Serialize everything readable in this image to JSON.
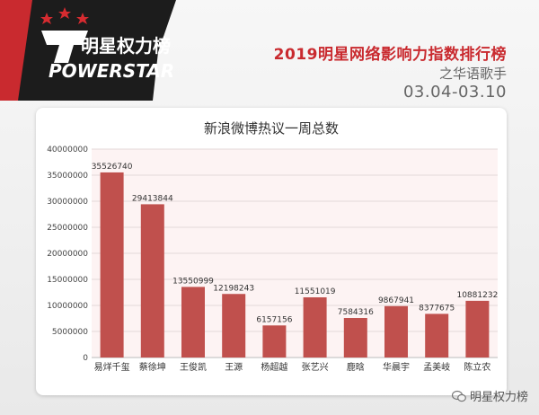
{
  "header": {
    "brand_cn": "明星权力榜",
    "brand_en": "POWERSTAR",
    "title": "2019明星网络影响力指数排行榜",
    "subtitle": "之华语歌手",
    "date_range": "03.04-03.10"
  },
  "watermark": {
    "text": "明星权力榜",
    "icon": "wechat-icon"
  },
  "colors": {
    "accent": "#c92a2f",
    "bar": "#c0504d",
    "logo_dark": "#1c1c1c"
  },
  "chart_data": {
    "type": "bar",
    "title": "新浪微博热议一周总数",
    "xlabel": "",
    "ylabel": "",
    "categories": [
      "易烊千玺",
      "蔡徐坤",
      "王俊凯",
      "王源",
      "杨超越",
      "张艺兴",
      "鹿晗",
      "华晨宇",
      "孟美岐",
      "陈立农"
    ],
    "values": [
      35526740,
      29413844,
      13550999,
      12198243,
      6157156,
      11551019,
      7584316,
      9867941,
      8377675,
      10881232
    ],
    "ylim": [
      0,
      40000000
    ],
    "yticks": [
      "0",
      "5000000",
      "10000000",
      "15000000",
      "20000000",
      "25000000",
      "30000000",
      "35000000",
      "40000000"
    ],
    "grid": true,
    "legend": "none"
  }
}
